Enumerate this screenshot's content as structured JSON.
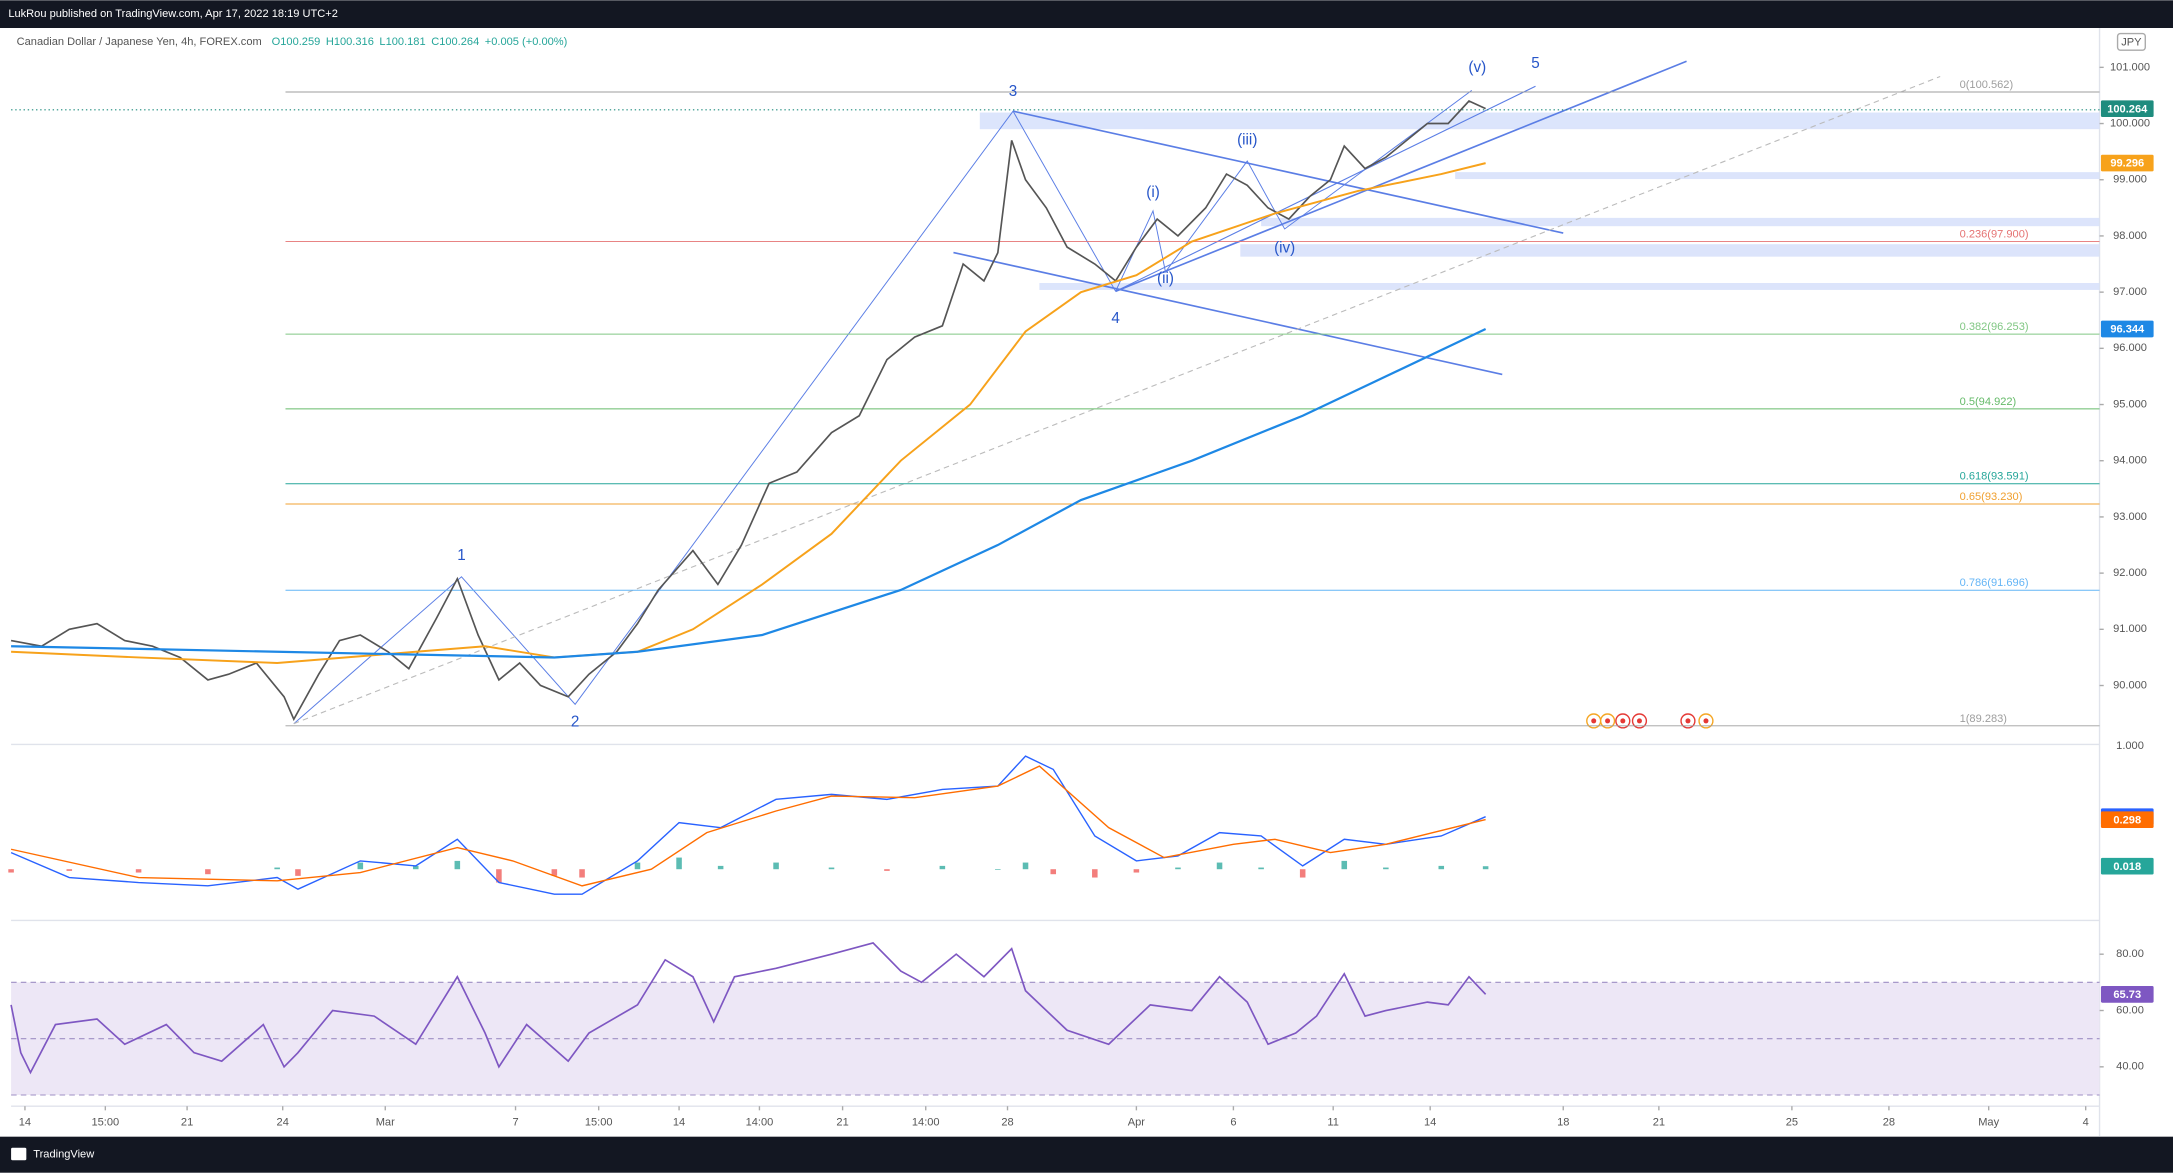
{
  "header": {
    "publisher": "LukRou published on TradingView.com, Apr 17, 2022 18:19 UTC+2",
    "symbol": "Canadian Dollar / Japanese Yen, 4h, FOREX.com",
    "ohlc": [
      "O100.259",
      "H100.316",
      "L100.181",
      "C100.264",
      "+0.005 (+0.00%)"
    ],
    "currency": "JPY"
  },
  "footer": {
    "brand": "TradingView"
  },
  "chart_data": [
    {
      "type": "price",
      "xlim": [
        8,
        1515
      ],
      "xticks": [
        {
          "value": 18,
          "label": "14"
        },
        {
          "value": 76,
          "label": "15:00"
        },
        {
          "value": 135,
          "label": "21"
        },
        {
          "value": 204,
          "label": "24"
        },
        {
          "value": 278,
          "label": "Mar"
        },
        {
          "value": 372,
          "label": "7"
        },
        {
          "value": 432,
          "label": "15:00"
        },
        {
          "value": 490,
          "label": "14"
        },
        {
          "value": 548,
          "label": "14:00"
        },
        {
          "value": 608,
          "label": "21"
        },
        {
          "value": 668,
          "label": "14:00"
        },
        {
          "value": 727,
          "label": "28"
        },
        {
          "value": 820,
          "label": "Apr"
        },
        {
          "value": 890,
          "label": "6"
        },
        {
          "value": 962,
          "label": "11"
        },
        {
          "value": 1032,
          "label": "14"
        },
        {
          "value": 1128,
          "label": "18"
        },
        {
          "value": 1197,
          "label": "21"
        },
        {
          "value": 1293,
          "label": "25"
        },
        {
          "value": 1363,
          "label": "28"
        },
        {
          "value": 1435,
          "label": "May"
        },
        {
          "value": 1505,
          "label": "4"
        }
      ],
      "ylim": [
        89,
        101.7
      ],
      "yticks": [
        {
          "value": 90,
          "label": "90.000"
        },
        {
          "value": 91,
          "label": "91.000"
        },
        {
          "value": 92,
          "label": "92.000"
        },
        {
          "value": 93,
          "label": "93.000"
        },
        {
          "value": 94,
          "label": "94.000"
        },
        {
          "value": 95,
          "label": "95.000"
        },
        {
          "value": 96,
          "label": "96.000"
        },
        {
          "value": 97,
          "label": "97.000"
        },
        {
          "value": 98,
          "label": "98.000"
        },
        {
          "value": 99,
          "label": "99.000"
        },
        {
          "value": 100,
          "label": "100.000"
        },
        {
          "value": 101,
          "label": "101.000"
        }
      ],
      "series": [
        {
          "color": "#555555",
          "width": 1.2,
          "tag_color": "#1e8c7e",
          "last_value": 100.264,
          "x": [
            8,
            30,
            50,
            70,
            90,
            110,
            130,
            150,
            165,
            185,
            205,
            212,
            230,
            245,
            260,
            280,
            295,
            315,
            330,
            345,
            360,
            375,
            390,
            410,
            425,
            445,
            460,
            475,
            500,
            518,
            535,
            555,
            575,
            600,
            620,
            640,
            660,
            680,
            695,
            710,
            720,
            730,
            740,
            755,
            770,
            790,
            805,
            820,
            835,
            850,
            870,
            885,
            900,
            915,
            930,
            945,
            960,
            970,
            985,
            1000,
            1015,
            1030,
            1045,
            1060,
            1072
          ],
          "values": [
            90.8,
            90.7,
            91.0,
            91.1,
            90.8,
            90.7,
            90.5,
            90.1,
            90.2,
            90.4,
            89.8,
            89.4,
            90.2,
            90.8,
            90.9,
            90.6,
            90.3,
            91.2,
            91.9,
            90.9,
            90.1,
            90.4,
            90.0,
            89.8,
            90.2,
            90.6,
            91.1,
            91.7,
            92.4,
            91.8,
            92.5,
            93.6,
            93.8,
            94.5,
            94.8,
            95.8,
            96.2,
            96.4,
            97.5,
            97.2,
            97.7,
            99.7,
            99.0,
            98.5,
            97.8,
            97.5,
            97.2,
            97.8,
            98.3,
            98.0,
            98.5,
            99.1,
            98.9,
            98.5,
            98.3,
            98.7,
            99.0,
            99.6,
            99.2,
            99.4,
            99.7,
            100.0,
            100.0,
            100.4,
            100.264
          ]
        },
        {
          "color": "#f7a21b",
          "width": 1.4,
          "tag_color": "#f7a21b",
          "last_value": 99.296,
          "x": [
            8,
            100,
            200,
            300,
            350,
            400,
            460,
            500,
            550,
            600,
            650,
            700,
            740,
            780,
            820,
            860,
            920,
            980,
            1040,
            1072
          ],
          "values": [
            90.6,
            90.5,
            90.4,
            90.6,
            90.7,
            90.5,
            90.6,
            91.0,
            91.8,
            92.7,
            94.0,
            95.0,
            96.3,
            97.0,
            97.3,
            97.9,
            98.4,
            98.8,
            99.1,
            99.296
          ]
        },
        {
          "color": "#1e88e5",
          "width": 1.6,
          "tag_color": "#1e88e5",
          "last_value": 96.344,
          "x": [
            8,
            200,
            400,
            460,
            550,
            650,
            720,
            780,
            860,
            940,
            1000,
            1072
          ],
          "values": [
            90.7,
            90.6,
            90.5,
            90.6,
            90.9,
            91.7,
            92.5,
            93.3,
            94.0,
            94.8,
            95.5,
            96.344
          ]
        }
      ],
      "fib_levels": [
        {
          "label": "0(100.562)",
          "value": 100.562,
          "color": "#9e9e9e"
        },
        {
          "label": "0.236(97.900)",
          "value": 97.9,
          "color": "#e57373"
        },
        {
          "label": "0.382(96.253)",
          "value": 96.253,
          "color": "#81c784"
        },
        {
          "label": "0.5(94.922)",
          "value": 94.922,
          "color": "#66bb6a"
        },
        {
          "label": "0.618(93.591)",
          "value": 93.591,
          "color": "#26a69a"
        },
        {
          "label": "0.65(93.230)",
          "value": 93.23,
          "color": "#f0a030"
        },
        {
          "label": "0.786(91.696)",
          "value": 91.696,
          "color": "#64b5f6"
        },
        {
          "label": "1(89.283)",
          "value": 89.283,
          "color": "#9e9e9e"
        }
      ],
      "annotations": [
        "1",
        "2",
        "3",
        "4",
        "5",
        "(i)",
        "(ii)",
        "(iii)",
        "(iv)",
        "(v)"
      ]
    },
    {
      "type": "macd",
      "ylim": [
        -0.275,
        0.725
      ],
      "scale_label": "1.000",
      "pos_color": "#26a69a",
      "neg_color": "#ef5350",
      "series": [
        {
          "color": "#2962ff",
          "tag_color": "#2962ff",
          "last_value": 0.316,
          "x": [
            8,
            50,
            100,
            150,
            200,
            215,
            260,
            300,
            330,
            360,
            400,
            420,
            460,
            490,
            520,
            560,
            600,
            640,
            680,
            720,
            740,
            760,
            790,
            820,
            850,
            880,
            910,
            940,
            970,
            1000,
            1040,
            1072
          ],
          "values": [
            0.1,
            -0.05,
            -0.08,
            -0.1,
            -0.05,
            -0.12,
            0.05,
            0.02,
            0.18,
            -0.08,
            -0.15,
            -0.15,
            0.05,
            0.28,
            0.25,
            0.42,
            0.45,
            0.42,
            0.48,
            0.5,
            0.68,
            0.6,
            0.2,
            0.05,
            0.08,
            0.22,
            0.2,
            0.02,
            0.18,
            0.15,
            0.2,
            0.316
          ]
        },
        {
          "color": "#ff6d00",
          "tag_color": "#ff6d00",
          "last_value": 0.298,
          "x": [
            8,
            100,
            200,
            260,
            330,
            370,
            420,
            470,
            510,
            560,
            600,
            660,
            720,
            750,
            800,
            840,
            890,
            920,
            960,
            1000,
            1072
          ],
          "values": [
            0.12,
            -0.05,
            -0.07,
            -0.02,
            0.13,
            0.05,
            -0.1,
            0.0,
            0.22,
            0.35,
            0.44,
            0.43,
            0.5,
            0.62,
            0.25,
            0.07,
            0.15,
            0.18,
            0.1,
            0.15,
            0.298
          ]
        }
      ],
      "histogram": {
        "tag_color": "#26a69a",
        "last_value": 0.018,
        "x": [
          8,
          50,
          100,
          150,
          200,
          215,
          260,
          300,
          330,
          360,
          400,
          420,
          460,
          490,
          520,
          560,
          600,
          640,
          680,
          720,
          740,
          760,
          790,
          820,
          850,
          880,
          910,
          940,
          970,
          1000,
          1040,
          1072
        ],
        "values": [
          -0.02,
          -0.01,
          -0.02,
          -0.03,
          0.01,
          -0.04,
          0.04,
          0.02,
          0.05,
          -0.08,
          -0.04,
          -0.05,
          0.04,
          0.07,
          0.02,
          0.04,
          0.01,
          -0.01,
          0.02,
          0.0,
          0.04,
          -0.03,
          -0.05,
          -0.02,
          0.01,
          0.04,
          0.01,
          -0.05,
          0.05,
          0.01,
          0.02,
          0.018
        ]
      }
    },
    {
      "type": "rsi",
      "ylim": [
        27.5,
        90
      ],
      "yticks": [
        {
          "value": 80,
          "label": "80.00"
        },
        {
          "value": 60,
          "label": "60.00"
        },
        {
          "value": 40,
          "label": "40.00"
        }
      ],
      "band": [
        30,
        70
      ],
      "mid": 50,
      "band_color": "#ede7f6",
      "series": [
        {
          "color": "#7e57c2",
          "tag_color": "#7e57c2",
          "last_value": 65.73,
          "x": [
            8,
            15,
            22,
            40,
            70,
            90,
            120,
            140,
            160,
            190,
            205,
            215,
            240,
            270,
            300,
            330,
            350,
            360,
            380,
            410,
            425,
            460,
            480,
            500,
            515,
            530,
            560,
            600,
            630,
            650,
            665,
            690,
            710,
            730,
            740,
            770,
            800,
            830,
            860,
            880,
            900,
            915,
            935,
            950,
            970,
            985,
            1000,
            1030,
            1045,
            1060,
            1072
          ],
          "values": [
            62,
            45,
            38,
            55,
            57,
            48,
            55,
            45,
            42,
            55,
            40,
            45,
            60,
            58,
            48,
            72,
            52,
            40,
            55,
            42,
            52,
            62,
            78,
            72,
            56,
            72,
            75,
            80,
            84,
            74,
            70,
            80,
            72,
            82,
            67,
            53,
            48,
            62,
            60,
            72,
            63,
            48,
            52,
            58,
            73,
            58,
            60,
            63,
            62,
            72,
            65.73
          ]
        }
      ]
    }
  ]
}
